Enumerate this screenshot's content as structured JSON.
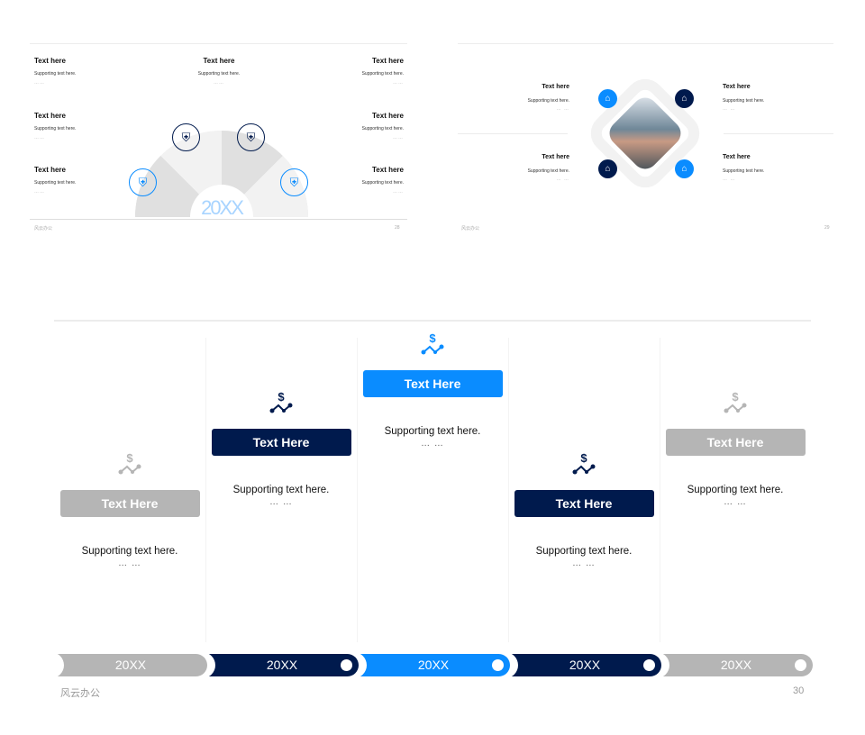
{
  "colors": {
    "navy": "#001a4d",
    "blue": "#0a8cff",
    "gray": "#b5b5b5",
    "light": "#f2f2f2"
  },
  "slide28": {
    "items": [
      {
        "title": "Text here",
        "support": "Supporting text here.",
        "dots": "……"
      },
      {
        "title": "Text here",
        "support": "Supporting text here.",
        "dots": "……"
      },
      {
        "title": "Text here",
        "support": "Supporting text here.",
        "dots": "……"
      },
      {
        "title": "Text here",
        "support": "Supporting text here.",
        "dots": "……"
      },
      {
        "title": "Text here",
        "support": "Supporting text here.",
        "dots": "……"
      },
      {
        "title": "Text here",
        "support": "Supporting text here.",
        "dots": "……"
      },
      {
        "title": "Text here",
        "support": "Supporting text here.",
        "dots": "……"
      }
    ],
    "center": "20XX",
    "icon": "shield-dollar-icon",
    "footer": "风云办公",
    "page": "28"
  },
  "slide29": {
    "items": [
      {
        "title": "Text here",
        "support": "Supporting text here.",
        "dots": "… …"
      },
      {
        "title": "Text here",
        "support": "Supporting text here.",
        "dots": "… …"
      },
      {
        "title": "Text here",
        "support": "Supporting text here.",
        "dots": "… …"
      },
      {
        "title": "Text here",
        "support": "Supporting text here.",
        "dots": "… …"
      }
    ],
    "icon": "car-home-icon",
    "image": "laptop-typing-photo",
    "footer": "风云办公",
    "page": "29"
  },
  "slide30": {
    "columns": [
      {
        "title": "Text Here",
        "support": "Supporting text here.",
        "dots": "… …",
        "year": "20XX",
        "color": "#b5b5b5"
      },
      {
        "title": "Text Here",
        "support": "Supporting text here.",
        "dots": "… …",
        "year": "20XX",
        "color": "#001a4d"
      },
      {
        "title": "Text Here",
        "support": "Supporting text here.",
        "dots": "… …",
        "year": "20XX",
        "color": "#0a8cff"
      },
      {
        "title": "Text Here",
        "support": "Supporting text here.",
        "dots": "… …",
        "year": "20XX",
        "color": "#001a4d"
      },
      {
        "title": "Text Here",
        "support": "Supporting text here.",
        "dots": "… …",
        "year": "20XX",
        "color": "#b5b5b5"
      }
    ],
    "icon": "dollar-trend-icon",
    "footer": "风云办公",
    "page": "30"
  }
}
